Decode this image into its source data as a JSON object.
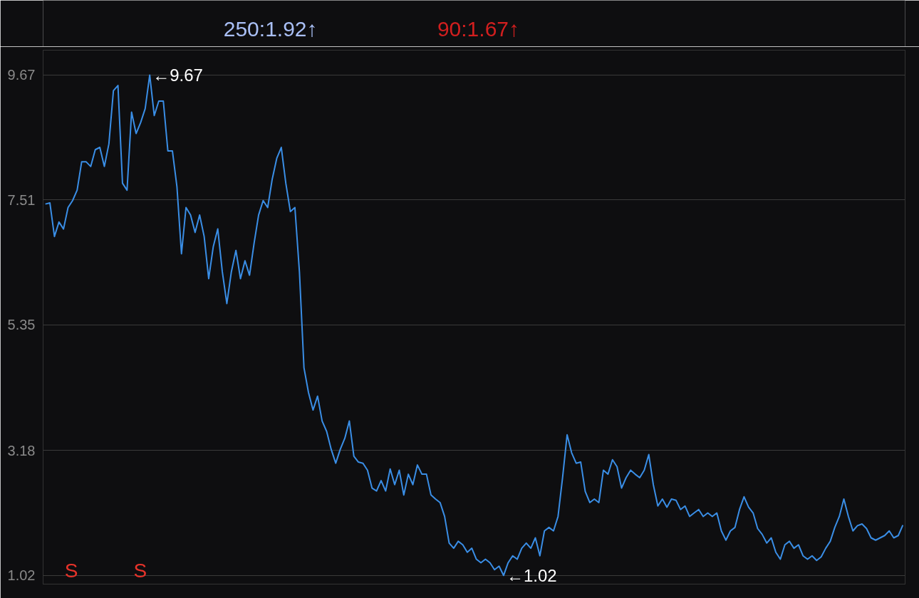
{
  "chart_data": {
    "type": "line",
    "categories": [
      null,
      null,
      null,
      null,
      null,
      null,
      null,
      null,
      null,
      null,
      null,
      null,
      null,
      null,
      null,
      null,
      null,
      null,
      null,
      null,
      null,
      null,
      null,
      null,
      null,
      null,
      null,
      null,
      null,
      null,
      null,
      null,
      null,
      null,
      null,
      null,
      null,
      null,
      null,
      null,
      null,
      null,
      null,
      null,
      null,
      null,
      null,
      null,
      null,
      null,
      null,
      null,
      null,
      null,
      null,
      null,
      null,
      null,
      null,
      null,
      null,
      null,
      null,
      null,
      null,
      null,
      null,
      null,
      null,
      null,
      null,
      null,
      null,
      null,
      null,
      null,
      null,
      null,
      null,
      null,
      null,
      null,
      null,
      null,
      null,
      null,
      null,
      null,
      null,
      null,
      null,
      null,
      null,
      null,
      null,
      null,
      null,
      null,
      null,
      null,
      null,
      null,
      null,
      null,
      null,
      null,
      null,
      null,
      null,
      null,
      null,
      null,
      null,
      null,
      null,
      null,
      null,
      null,
      null,
      null,
      null,
      null,
      null,
      null,
      null,
      null,
      null,
      null,
      null,
      null,
      null,
      null,
      null,
      null,
      null,
      null,
      null,
      null,
      null,
      null,
      null,
      null,
      null,
      null,
      null,
      null,
      null,
      null,
      null,
      null,
      null,
      null,
      null,
      null,
      null,
      null,
      null,
      null,
      null,
      null,
      null,
      null,
      null,
      null,
      null,
      null,
      null,
      null,
      null,
      null,
      null,
      null,
      null,
      null,
      null,
      null,
      null,
      null,
      null,
      null,
      null,
      null,
      null,
      null,
      null,
      null,
      null,
      null,
      null,
      null
    ],
    "values": [
      7.44,
      7.46,
      6.88,
      7.13,
      7.01,
      7.38,
      7.5,
      7.68,
      8.17,
      8.17,
      8.09,
      8.38,
      8.42,
      8.09,
      8.48,
      9.4,
      9.49,
      7.8,
      7.68,
      9.03,
      8.66,
      8.85,
      9.09,
      9.67,
      8.97,
      9.22,
      9.22,
      8.36,
      8.36,
      7.74,
      6.58,
      7.38,
      7.25,
      6.95,
      7.25,
      6.88,
      6.15,
      6.7,
      7.01,
      6.27,
      5.72,
      6.27,
      6.64,
      6.15,
      6.46,
      6.21,
      6.76,
      7.25,
      7.5,
      7.38,
      7.87,
      8.23,
      8.42,
      7.8,
      7.31,
      7.38,
      6.27,
      4.61,
      4.18,
      3.88,
      4.12,
      3.69,
      3.51,
      3.2,
      2.96,
      3.2,
      3.39,
      3.69,
      3.08,
      2.98,
      2.96,
      2.84,
      2.53,
      2.48,
      2.66,
      2.48,
      2.86,
      2.59,
      2.84,
      2.41,
      2.77,
      2.59,
      2.93,
      2.77,
      2.77,
      2.41,
      2.34,
      2.28,
      2.04,
      1.58,
      1.49,
      1.61,
      1.55,
      1.42,
      1.49,
      1.3,
      1.24,
      1.3,
      1.24,
      1.12,
      1.18,
      1.02,
      1.24,
      1.36,
      1.3,
      1.49,
      1.58,
      1.49,
      1.67,
      1.36,
      1.79,
      1.85,
      1.79,
      2.04,
      2.71,
      3.45,
      3.14,
      2.96,
      2.98,
      2.47,
      2.28,
      2.34,
      2.28,
      2.84,
      2.77,
      3.02,
      2.9,
      2.53,
      2.71,
      2.84,
      2.77,
      2.71,
      2.84,
      3.11,
      2.59,
      2.22,
      2.34,
      2.2,
      2.34,
      2.32,
      2.16,
      2.22,
      2.04,
      2.1,
      2.16,
      2.04,
      2.1,
      2.04,
      2.1,
      1.79,
      1.63,
      1.79,
      1.85,
      2.16,
      2.38,
      2.2,
      2.1,
      1.83,
      1.73,
      1.58,
      1.67,
      1.42,
      1.3,
      1.55,
      1.61,
      1.49,
      1.55,
      1.36,
      1.3,
      1.36,
      1.28,
      1.34,
      1.49,
      1.61,
      1.85,
      2.04,
      2.34,
      2.04,
      1.79,
      1.88,
      1.91,
      1.83,
      1.67,
      1.63,
      1.67,
      1.71,
      1.79,
      1.67,
      1.71,
      1.89
    ],
    "color": "#3a8ee6",
    "ylim": [
      0.87,
      10.1
    ],
    "yticks": [
      9.67,
      7.51,
      5.35,
      3.18,
      1.02
    ],
    "grid": "y",
    "tick_labels": "y",
    "marker": "none",
    "line_style": "solid",
    "annotations": [
      "250:1.92↑",
      "90:1.67↑",
      "←9.67",
      "←1.02",
      "S",
      "S"
    ]
  }
}
